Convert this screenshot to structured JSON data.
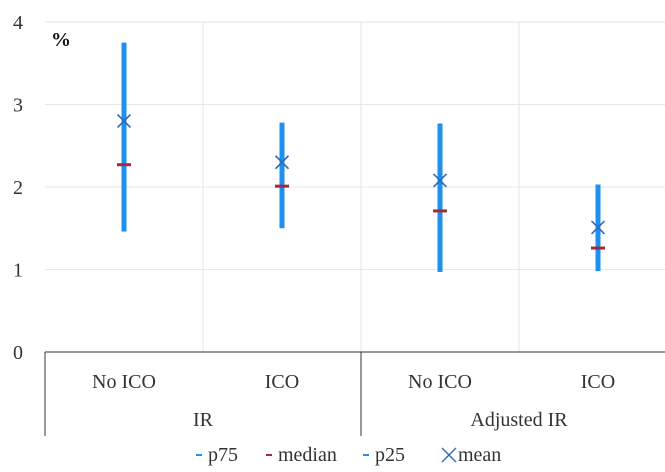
{
  "chart_data": {
    "type": "range",
    "unit_label": "%",
    "groups": [
      {
        "label": "IR",
        "categories": [
          "No ICO",
          "ICO"
        ]
      },
      {
        "label": "Adjusted IR",
        "categories": [
          "No ICO",
          "ICO"
        ]
      }
    ],
    "series": [
      {
        "name": "p75",
        "values": [
          3.75,
          2.78,
          2.77,
          2.03
        ]
      },
      {
        "name": "median",
        "values": [
          2.27,
          2.01,
          1.71,
          1.26
        ]
      },
      {
        "name": "p25",
        "values": [
          1.46,
          1.5,
          0.97,
          0.98
        ]
      },
      {
        "name": "mean",
        "values": [
          2.8,
          2.3,
          2.08,
          1.51
        ]
      }
    ],
    "yticks": [
      "0",
      "1",
      "2",
      "3",
      "4"
    ],
    "ylim": [
      0,
      4
    ],
    "grid": true,
    "legend_position": "bottom",
    "colors": {
      "range_bar": "#1E90F0",
      "median": "#A3293A",
      "mean": "#2E6DB4",
      "grid": "#E6E6E6",
      "axis": "#333333"
    }
  }
}
